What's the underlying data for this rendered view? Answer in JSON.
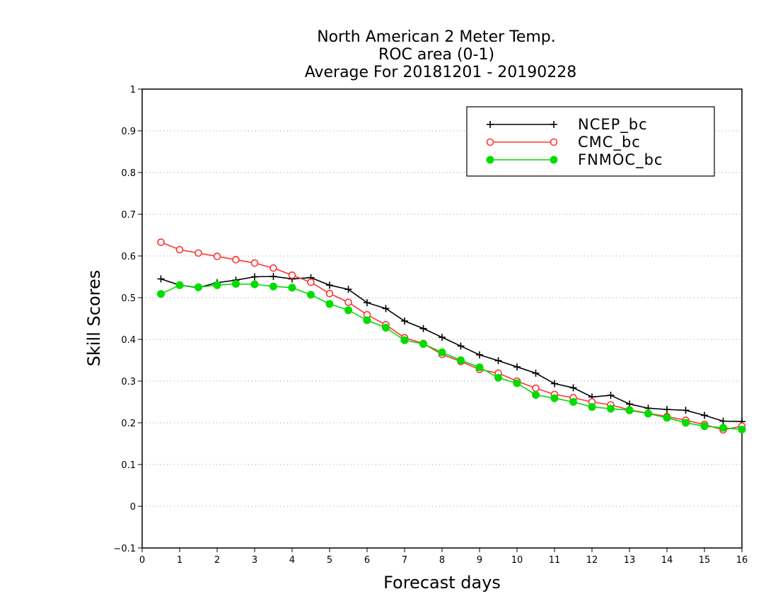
{
  "chart_data": {
    "type": "line",
    "title_lines": [
      "North American 2 Meter Temp.",
      "ROC area (0-1)",
      "Average For 20181201 - 20190228"
    ],
    "xlabel": "Forecast days",
    "ylabel": "Skill Scores",
    "xlim": [
      0,
      16
    ],
    "ylim": [
      -0.1,
      1
    ],
    "x_ticks": [
      0,
      1,
      2,
      3,
      4,
      5,
      6,
      7,
      8,
      9,
      10,
      11,
      12,
      13,
      14,
      15,
      16
    ],
    "y_ticks": [
      -0.1,
      0,
      0.1,
      0.2,
      0.3,
      0.4,
      0.5,
      0.6,
      0.7,
      0.8,
      0.9,
      1
    ],
    "y_tick_labels": [
      "−0.1",
      "0",
      "0.1",
      "0.2",
      "0.3",
      "0.4",
      "0.5",
      "0.6",
      "0.7",
      "0.8",
      "0.9",
      "1"
    ],
    "grid": "horizontal dotted",
    "legend_position": "top-right",
    "x": [
      0.5,
      1,
      1.5,
      2,
      2.5,
      3,
      3.5,
      4,
      4.5,
      5,
      5.5,
      6,
      6.5,
      7,
      7.5,
      8,
      8.5,
      9,
      9.5,
      10,
      10.5,
      11,
      11.5,
      12,
      12.5,
      13,
      13.5,
      14,
      14.5,
      15,
      15.5,
      16
    ],
    "series": [
      {
        "name": "NCEP_bc",
        "color": "#000000",
        "marker": "plus",
        "values": [
          0.545,
          0.53,
          0.524,
          0.536,
          0.542,
          0.55,
          0.551,
          0.545,
          0.548,
          0.53,
          0.52,
          0.488,
          0.474,
          0.444,
          0.426,
          0.405,
          0.384,
          0.363,
          0.349,
          0.334,
          0.319,
          0.294,
          0.284,
          0.262,
          0.266,
          0.245,
          0.235,
          0.232,
          0.23,
          0.218,
          0.204,
          0.203
        ]
      },
      {
        "name": "CMC_bc",
        "color": "#ff3333",
        "marker": "open-circle",
        "values": [
          0.633,
          0.615,
          0.607,
          0.599,
          0.591,
          0.583,
          0.571,
          0.554,
          0.537,
          0.51,
          0.489,
          0.459,
          0.435,
          0.404,
          0.39,
          0.364,
          0.347,
          0.328,
          0.319,
          0.3,
          0.283,
          0.268,
          0.26,
          0.25,
          0.243,
          0.231,
          0.223,
          0.215,
          0.206,
          0.196,
          0.183,
          0.192
        ]
      },
      {
        "name": "FNMOC_bc",
        "color": "#00dd00",
        "marker": "filled-circle",
        "values": [
          0.509,
          0.53,
          0.525,
          0.53,
          0.533,
          0.532,
          0.527,
          0.524,
          0.507,
          0.485,
          0.47,
          0.446,
          0.428,
          0.398,
          0.389,
          0.369,
          0.35,
          0.333,
          0.308,
          0.295,
          0.267,
          0.259,
          0.25,
          0.238,
          0.234,
          0.23,
          0.222,
          0.212,
          0.2,
          0.192,
          0.188,
          0.184
        ]
      }
    ]
  }
}
